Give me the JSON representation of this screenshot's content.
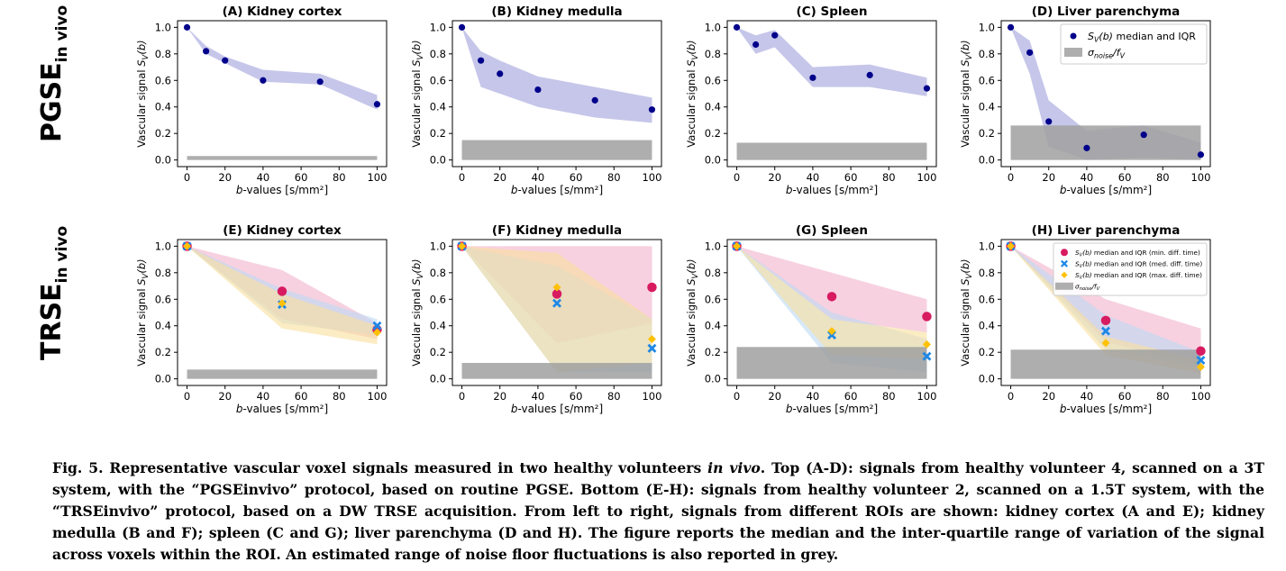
{
  "row_labels": [
    {
      "main": "PGSE",
      "sub": "in vivo"
    },
    {
      "main": "TRSE",
      "sub": "in vivo"
    }
  ],
  "colors": {
    "pgse_point": "#00008b",
    "pgse_band": "#bcbce6",
    "min_point": "#d81b60",
    "min_band": "#f2b3cc",
    "med_point": "#1e88e5",
    "med_band": "#bcd9f3",
    "max_point": "#ffc107",
    "max_band": "#f8df9c",
    "noise": "#a0a0a0"
  },
  "chart_data": [
    {
      "type": "scatter",
      "title": "(A) Kidney cortex",
      "xlabel_italic": "b",
      "xlabel": "-values  [s/mm²]",
      "ylabel": "Vascular signal  S",
      "ylabel_sub": "V",
      "ylabel_tail": "(b)",
      "xlim": [
        -5,
        105
      ],
      "ylim": [
        -0.05,
        1.05
      ],
      "xticks": [
        0,
        20,
        40,
        60,
        80,
        100
      ],
      "yticks": [
        0.0,
        0.2,
        0.4,
        0.6,
        0.8,
        1.0
      ],
      "noise": [
        0.0,
        0.03
      ],
      "series": [
        {
          "x": [
            0,
            10,
            20,
            40,
            70,
            100
          ],
          "y": [
            1.0,
            0.82,
            0.75,
            0.6,
            0.59,
            0.42
          ],
          "band_low": [
            1.0,
            0.8,
            0.73,
            0.59,
            0.57,
            0.38
          ],
          "band_high": [
            1.0,
            0.86,
            0.78,
            0.68,
            0.65,
            0.49
          ],
          "color": "pgse_point",
          "band": "pgse_band",
          "marker": "circle"
        }
      ]
    },
    {
      "type": "scatter",
      "title": "(B) Kidney medulla",
      "xlabel_italic": "b",
      "xlabel": "-values  [s/mm²]",
      "ylabel": "Vascular signal  S",
      "ylabel_sub": "V",
      "ylabel_tail": "(b)",
      "xlim": [
        -5,
        105
      ],
      "ylim": [
        -0.05,
        1.05
      ],
      "xticks": [
        0,
        20,
        40,
        60,
        80,
        100
      ],
      "yticks": [
        0.0,
        0.2,
        0.4,
        0.6,
        0.8,
        1.0
      ],
      "noise": [
        0.0,
        0.15
      ],
      "series": [
        {
          "x": [
            0,
            10,
            20,
            40,
            70,
            100
          ],
          "y": [
            1.0,
            0.75,
            0.65,
            0.53,
            0.45,
            0.38
          ],
          "band_low": [
            1.0,
            0.55,
            0.5,
            0.4,
            0.32,
            0.28
          ],
          "band_high": [
            1.0,
            0.82,
            0.75,
            0.63,
            0.55,
            0.47
          ],
          "color": "pgse_point",
          "band": "pgse_band",
          "marker": "circle"
        }
      ]
    },
    {
      "type": "scatter",
      "title": "(C) Spleen",
      "xlabel_italic": "b",
      "xlabel": "-values  [s/mm²]",
      "ylabel": "Vascular signal  S",
      "ylabel_sub": "V",
      "ylabel_tail": "(b)",
      "xlim": [
        -5,
        105
      ],
      "ylim": [
        -0.05,
        1.05
      ],
      "xticks": [
        0,
        20,
        40,
        60,
        80,
        100
      ],
      "yticks": [
        0.0,
        0.2,
        0.4,
        0.6,
        0.8,
        1.0
      ],
      "noise": [
        0.0,
        0.13
      ],
      "series": [
        {
          "x": [
            0,
            10,
            20,
            40,
            70,
            100
          ],
          "y": [
            1.0,
            0.87,
            0.94,
            0.62,
            0.64,
            0.54
          ],
          "band_low": [
            1.0,
            0.8,
            0.85,
            0.55,
            0.55,
            0.48
          ],
          "band_high": [
            1.0,
            0.94,
            0.98,
            0.7,
            0.72,
            0.62
          ],
          "color": "pgse_point",
          "band": "pgse_band",
          "marker": "circle"
        }
      ]
    },
    {
      "type": "scatter",
      "title": "(D) Liver parenchyma",
      "xlabel_italic": "b",
      "xlabel": "-values  [s/mm²]",
      "ylabel": "Vascular signal  S",
      "ylabel_sub": "V",
      "ylabel_tail": "(b)",
      "xlim": [
        -5,
        105
      ],
      "ylim": [
        -0.05,
        1.05
      ],
      "xticks": [
        0,
        20,
        40,
        60,
        80,
        100
      ],
      "yticks": [
        0.0,
        0.2,
        0.4,
        0.6,
        0.8,
        1.0
      ],
      "noise": [
        0.0,
        0.26
      ],
      "legend": {
        "placement": "top-right",
        "size": "large",
        "entries": [
          {
            "label": "median and IQR",
            "math": "S",
            "math_sub": "V",
            "math_tail": "(b)",
            "kind": "circle",
            "color": "pgse_point"
          },
          {
            "label": "",
            "math": "σ",
            "math_sub": "noise",
            "math_tail": "/f",
            "math_tail_sub": "V",
            "kind": "patch",
            "color": "noise"
          }
        ]
      },
      "series": [
        {
          "x": [
            0,
            10,
            20,
            40,
            70,
            100
          ],
          "y": [
            1.0,
            0.81,
            0.29,
            0.09,
            0.19,
            0.04
          ],
          "band_low": [
            1.0,
            0.65,
            0.1,
            0.0,
            0.02,
            0.0
          ],
          "band_high": [
            1.0,
            0.9,
            0.45,
            0.22,
            0.26,
            0.13
          ],
          "color": "pgse_point",
          "band": "pgse_band",
          "marker": "circle"
        }
      ]
    },
    {
      "type": "scatter",
      "title": "(E) Kidney cortex",
      "xlabel_italic": "b",
      "xlabel": "-values  [s/mm²]",
      "ylabel": "Vascular signal  S",
      "ylabel_sub": "V",
      "ylabel_tail": "(b)",
      "xlim": [
        -5,
        105
      ],
      "ylim": [
        -0.05,
        1.05
      ],
      "xticks": [
        0,
        20,
        40,
        60,
        80,
        100
      ],
      "yticks": [
        0.0,
        0.2,
        0.4,
        0.6,
        0.8,
        1.0
      ],
      "noise": [
        0.0,
        0.07
      ],
      "series": [
        {
          "x": [
            0,
            50,
            100
          ],
          "y": [
            1.0,
            0.66,
            0.37
          ],
          "band_low": [
            1.0,
            0.45,
            0.3
          ],
          "band_high": [
            1.0,
            0.82,
            0.42
          ],
          "color": "min_point",
          "band": "min_band",
          "marker": "circle"
        },
        {
          "x": [
            0,
            50,
            100
          ],
          "y": [
            1.0,
            0.56,
            0.4
          ],
          "band_low": [
            1.0,
            0.42,
            0.33
          ],
          "band_high": [
            1.0,
            0.68,
            0.45
          ],
          "color": "med_point",
          "band": "med_band",
          "marker": "x"
        },
        {
          "x": [
            0,
            50,
            100
          ],
          "y": [
            1.0,
            0.57,
            0.35
          ],
          "band_low": [
            1.0,
            0.38,
            0.26
          ],
          "band_high": [
            1.0,
            0.64,
            0.4
          ],
          "color": "max_point",
          "band": "max_band",
          "marker": "diamond"
        }
      ]
    },
    {
      "type": "scatter",
      "title": "(F) Kidney medulla",
      "xlabel_italic": "b",
      "xlabel": "-values  [s/mm²]",
      "ylabel": "Vascular signal  S",
      "ylabel_sub": "V",
      "ylabel_tail": "(b)",
      "xlim": [
        -5,
        105
      ],
      "ylim": [
        -0.05,
        1.05
      ],
      "xticks": [
        0,
        20,
        40,
        60,
        80,
        100
      ],
      "yticks": [
        0.0,
        0.2,
        0.4,
        0.6,
        0.8,
        1.0
      ],
      "noise": [
        0.0,
        0.12
      ],
      "series": [
        {
          "x": [
            0,
            50,
            100
          ],
          "y": [
            1.0,
            0.64,
            0.69
          ],
          "band_low": [
            1.0,
            0.27,
            0.42
          ],
          "band_high": [
            1.0,
            1.0,
            1.0
          ],
          "color": "min_point",
          "band": "min_band",
          "marker": "circle"
        },
        {
          "x": [
            0,
            50,
            100
          ],
          "y": [
            1.0,
            0.57,
            0.23
          ],
          "band_low": [
            1.0,
            0.05,
            0.05
          ],
          "band_high": [
            1.0,
            0.85,
            0.45
          ],
          "color": "med_point",
          "band": "med_band",
          "marker": "x"
        },
        {
          "x": [
            0,
            50,
            100
          ],
          "y": [
            1.0,
            0.69,
            0.3
          ],
          "band_low": [
            1.0,
            0.05,
            0.12
          ],
          "band_high": [
            1.0,
            0.95,
            0.45
          ],
          "color": "max_point",
          "band": "max_band",
          "marker": "diamond"
        }
      ]
    },
    {
      "type": "scatter",
      "title": "(G) Spleen",
      "xlabel_italic": "b",
      "xlabel": "-values  [s/mm²]",
      "ylabel": "Vascular signal  S",
      "ylabel_sub": "V",
      "ylabel_tail": "(b)",
      "xlim": [
        -5,
        105
      ],
      "ylim": [
        -0.05,
        1.05
      ],
      "xticks": [
        0,
        20,
        40,
        60,
        80,
        100
      ],
      "yticks": [
        0.0,
        0.2,
        0.4,
        0.6,
        0.8,
        1.0
      ],
      "noise": [
        0.0,
        0.24
      ],
      "series": [
        {
          "x": [
            0,
            50,
            100
          ],
          "y": [
            1.0,
            0.62,
            0.47
          ],
          "band_low": [
            1.0,
            0.45,
            0.35
          ],
          "band_high": [
            1.0,
            0.8,
            0.6
          ],
          "color": "min_point",
          "band": "min_band",
          "marker": "circle"
        },
        {
          "x": [
            0,
            50,
            100
          ],
          "y": [
            1.0,
            0.33,
            0.17
          ],
          "band_low": [
            1.0,
            0.12,
            0.05
          ],
          "band_high": [
            1.0,
            0.5,
            0.3
          ],
          "color": "med_point",
          "band": "med_band",
          "marker": "x"
        },
        {
          "x": [
            0,
            50,
            100
          ],
          "y": [
            1.0,
            0.36,
            0.26
          ],
          "band_low": [
            1.0,
            0.18,
            0.15
          ],
          "band_high": [
            1.0,
            0.45,
            0.35
          ],
          "color": "max_point",
          "band": "max_band",
          "marker": "diamond"
        }
      ]
    },
    {
      "type": "scatter",
      "title": "(H) Liver parenchyma",
      "xlabel_italic": "b",
      "xlabel": "-values  [s/mm²]",
      "ylabel": "Vascular signal  S",
      "ylabel_sub": "V",
      "ylabel_tail": "(b)",
      "xlim": [
        -5,
        105
      ],
      "ylim": [
        -0.05,
        1.05
      ],
      "xticks": [
        0,
        20,
        40,
        60,
        80,
        100
      ],
      "yticks": [
        0.0,
        0.2,
        0.4,
        0.6,
        0.8,
        1.0
      ],
      "noise": [
        0.0,
        0.22
      ],
      "legend": {
        "placement": "top-right",
        "size": "small",
        "entries": [
          {
            "label": "median and IQR (min. diff. time)",
            "math": "S",
            "math_sub": "V",
            "math_tail": "(b)",
            "kind": "circle",
            "color": "min_point"
          },
          {
            "label": "median and IQR (med. diff. time)",
            "math": "S",
            "math_sub": "V",
            "math_tail": "(b)",
            "kind": "x",
            "color": "med_point"
          },
          {
            "label": "median and IQR (max. diff. time)",
            "math": "S",
            "math_sub": "V",
            "math_tail": "(b)",
            "kind": "diamond",
            "color": "max_point"
          },
          {
            "label": "",
            "math": "σ",
            "math_sub": "noise",
            "math_tail": "/f",
            "math_tail_sub": "V",
            "kind": "patch",
            "color": "noise"
          }
        ]
      },
      "series": [
        {
          "x": [
            0,
            50,
            100
          ],
          "y": [
            1.0,
            0.44,
            0.21
          ],
          "band_low": [
            1.0,
            0.28,
            0.1
          ],
          "band_high": [
            1.0,
            0.6,
            0.38
          ],
          "color": "min_point",
          "band": "min_band",
          "marker": "circle"
        },
        {
          "x": [
            0,
            50,
            100
          ],
          "y": [
            1.0,
            0.36,
            0.14
          ],
          "band_low": [
            1.0,
            0.22,
            0.08
          ],
          "band_high": [
            1.0,
            0.48,
            0.2
          ],
          "color": "med_point",
          "band": "med_band",
          "marker": "x"
        },
        {
          "x": [
            0,
            50,
            100
          ],
          "y": [
            1.0,
            0.27,
            0.09
          ],
          "band_low": [
            1.0,
            0.18,
            0.04
          ],
          "band_high": [
            1.0,
            0.32,
            0.14
          ],
          "color": "max_point",
          "band": "max_band",
          "marker": "diamond"
        }
      ]
    }
  ],
  "caption": {
    "p1": "Fig. 5. Representative vascular voxel signals measured in two healthy volunteers ",
    "p1_em": "in vivo",
    "p2": ".  Top (A-D): signals from healthy volunteer 4, scanned on a 3T system, with the “PGSEinvivo” protocol, based on routine PGSE. Bottom (E-H): signals from healthy volunteer 2, scanned on a 1.5T system, with the “TRSEinvivo” protocol, based on a DW TRSE acquisition.  From left to right, signals from different ROIs are shown: kidney cortex (A and E); kidney medulla (B and F); spleen (C and G); liver parenchyma (D and H). The figure reports the median and the inter-quartile range of variation of the signal across voxels within the ROI. An estimated range of noise floor fluctuations is also reported in grey."
  }
}
